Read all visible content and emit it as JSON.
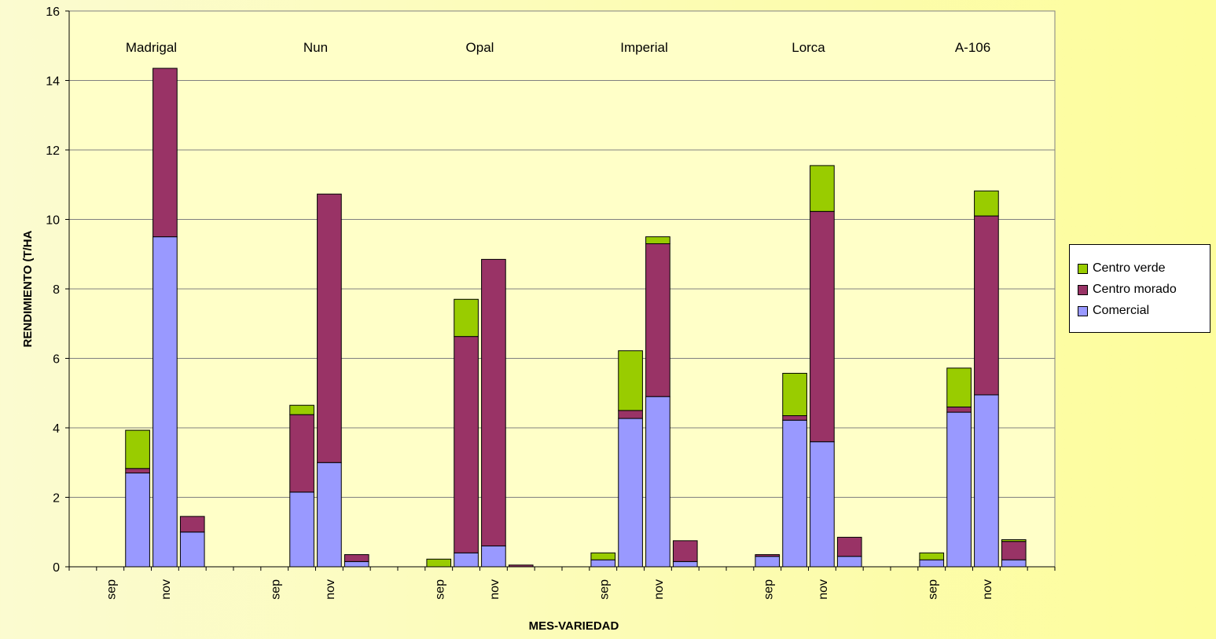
{
  "chart_data": {
    "type": "bar",
    "stacked": true,
    "xlabel": "MES-VARIEDAD",
    "ylabel": "RENDIMIENTO (T/HA",
    "ylim": [
      0,
      16
    ],
    "yticks": [
      0,
      2,
      4,
      6,
      8,
      10,
      12,
      14,
      16
    ],
    "grid": true,
    "legend_position": "right",
    "groups": [
      {
        "name": "Madrigal",
        "categories": [
          "sep",
          "",
          "nov",
          ""
        ]
      },
      {
        "name": "Nun",
        "categories": [
          "sep",
          "",
          "nov",
          ""
        ]
      },
      {
        "name": "Opal",
        "categories": [
          "sep",
          "",
          "nov",
          ""
        ]
      },
      {
        "name": "Imperial",
        "categories": [
          "sep",
          "",
          "nov",
          ""
        ]
      },
      {
        "name": "Lorca",
        "categories": [
          "sep",
          "",
          "nov",
          ""
        ]
      },
      {
        "name": "A-106",
        "categories": [
          "sep",
          "",
          "nov",
          ""
        ]
      }
    ],
    "series": [
      {
        "name": "Comercial",
        "color": "#9999ff",
        "values": [
          0,
          2.7,
          9.5,
          1.0,
          0,
          2.15,
          3.0,
          0.15,
          0,
          0.4,
          0.6,
          0.0,
          0.2,
          4.27,
          4.9,
          0.15,
          0.3,
          4.22,
          3.6,
          0.3,
          0.2,
          4.45,
          4.95,
          0.2
        ]
      },
      {
        "name": "Centro morado",
        "color": "#993366",
        "values": [
          0,
          0.13,
          4.85,
          0.45,
          0,
          2.23,
          7.73,
          0.2,
          0,
          6.23,
          8.25,
          0.05,
          0,
          0.23,
          4.4,
          0.6,
          0.05,
          0.13,
          6.63,
          0.55,
          0,
          0.15,
          5.15,
          0.53
        ]
      },
      {
        "name": "Centro verde",
        "color": "#99cc00",
        "values": [
          0,
          1.1,
          0,
          0,
          0,
          0.27,
          0,
          0,
          0.22,
          1.07,
          0,
          0,
          0.2,
          1.72,
          0.2,
          0,
          0,
          1.22,
          1.32,
          0,
          0.2,
          1.12,
          0.72,
          0.05
        ]
      }
    ]
  },
  "legend": {
    "items": [
      {
        "label": "Centro verde",
        "color": "#99cc00"
      },
      {
        "label": "Centro morado",
        "color": "#993366"
      },
      {
        "label": "Comercial",
        "color": "#9999ff"
      }
    ]
  }
}
